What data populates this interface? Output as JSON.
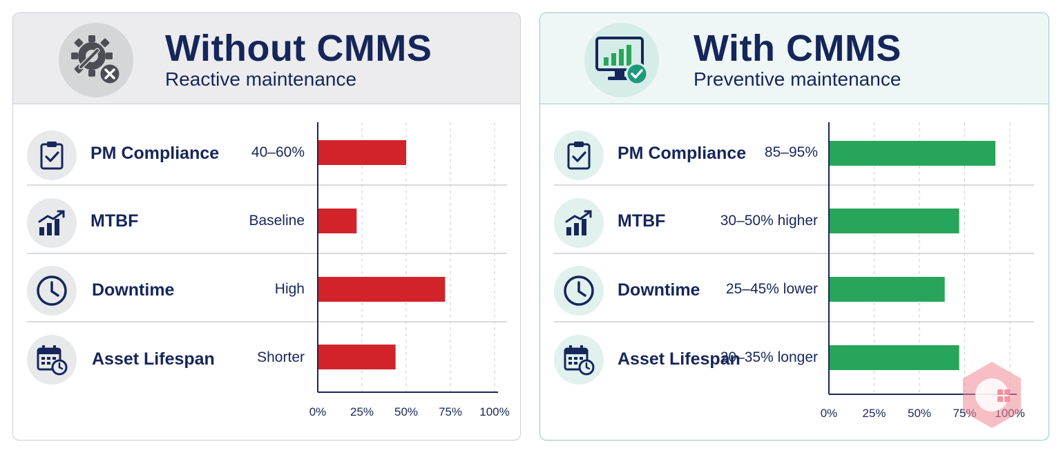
{
  "chart_data": [
    {
      "type": "bar",
      "orientation": "horizontal",
      "title": "Without CMMS",
      "subtitle": "Reactive maintenance",
      "categories": [
        "PM Compliance",
        "MTBF",
        "Downtime",
        "Asset Lifespan"
      ],
      "value_labels": [
        "40–60%",
        "Baseline",
        "High",
        "Shorter"
      ],
      "values": [
        50,
        22,
        72,
        44
      ],
      "xlim": [
        0,
        100
      ],
      "ticks": [
        "0%",
        "25%",
        "50%",
        "75%",
        "100%"
      ],
      "bar_color": "#d2232a",
      "grid": "dashed vertical"
    },
    {
      "type": "bar",
      "orientation": "horizontal",
      "title": "With CMMS",
      "subtitle": "Preventive maintenance",
      "categories": [
        "PM Compliance",
        "MTBF",
        "Downtime",
        "Asset Lifespan"
      ],
      "value_labels": [
        "85–95%",
        "30–50% higher",
        "25–45% lower",
        "20–35% longer"
      ],
      "values": [
        92,
        72,
        64,
        72
      ],
      "xlim": [
        0,
        100
      ],
      "ticks": [
        "0%",
        "25%",
        "50%",
        "75%",
        "100%"
      ],
      "bar_color": "#27a55a",
      "grid": "dashed vertical"
    }
  ],
  "icons": {
    "left_header": "gear-wrench-x-icon",
    "right_header": "monitor-chart-check-icon",
    "rows": [
      "clipboard-check-icon",
      "bar-trend-icon",
      "clock-icon",
      "calendar-clock-icon"
    ]
  },
  "colors": {
    "title": "#16265a",
    "bad": "#d2232a",
    "good": "#27a55a",
    "accent_teal": "#1e9a7b"
  }
}
